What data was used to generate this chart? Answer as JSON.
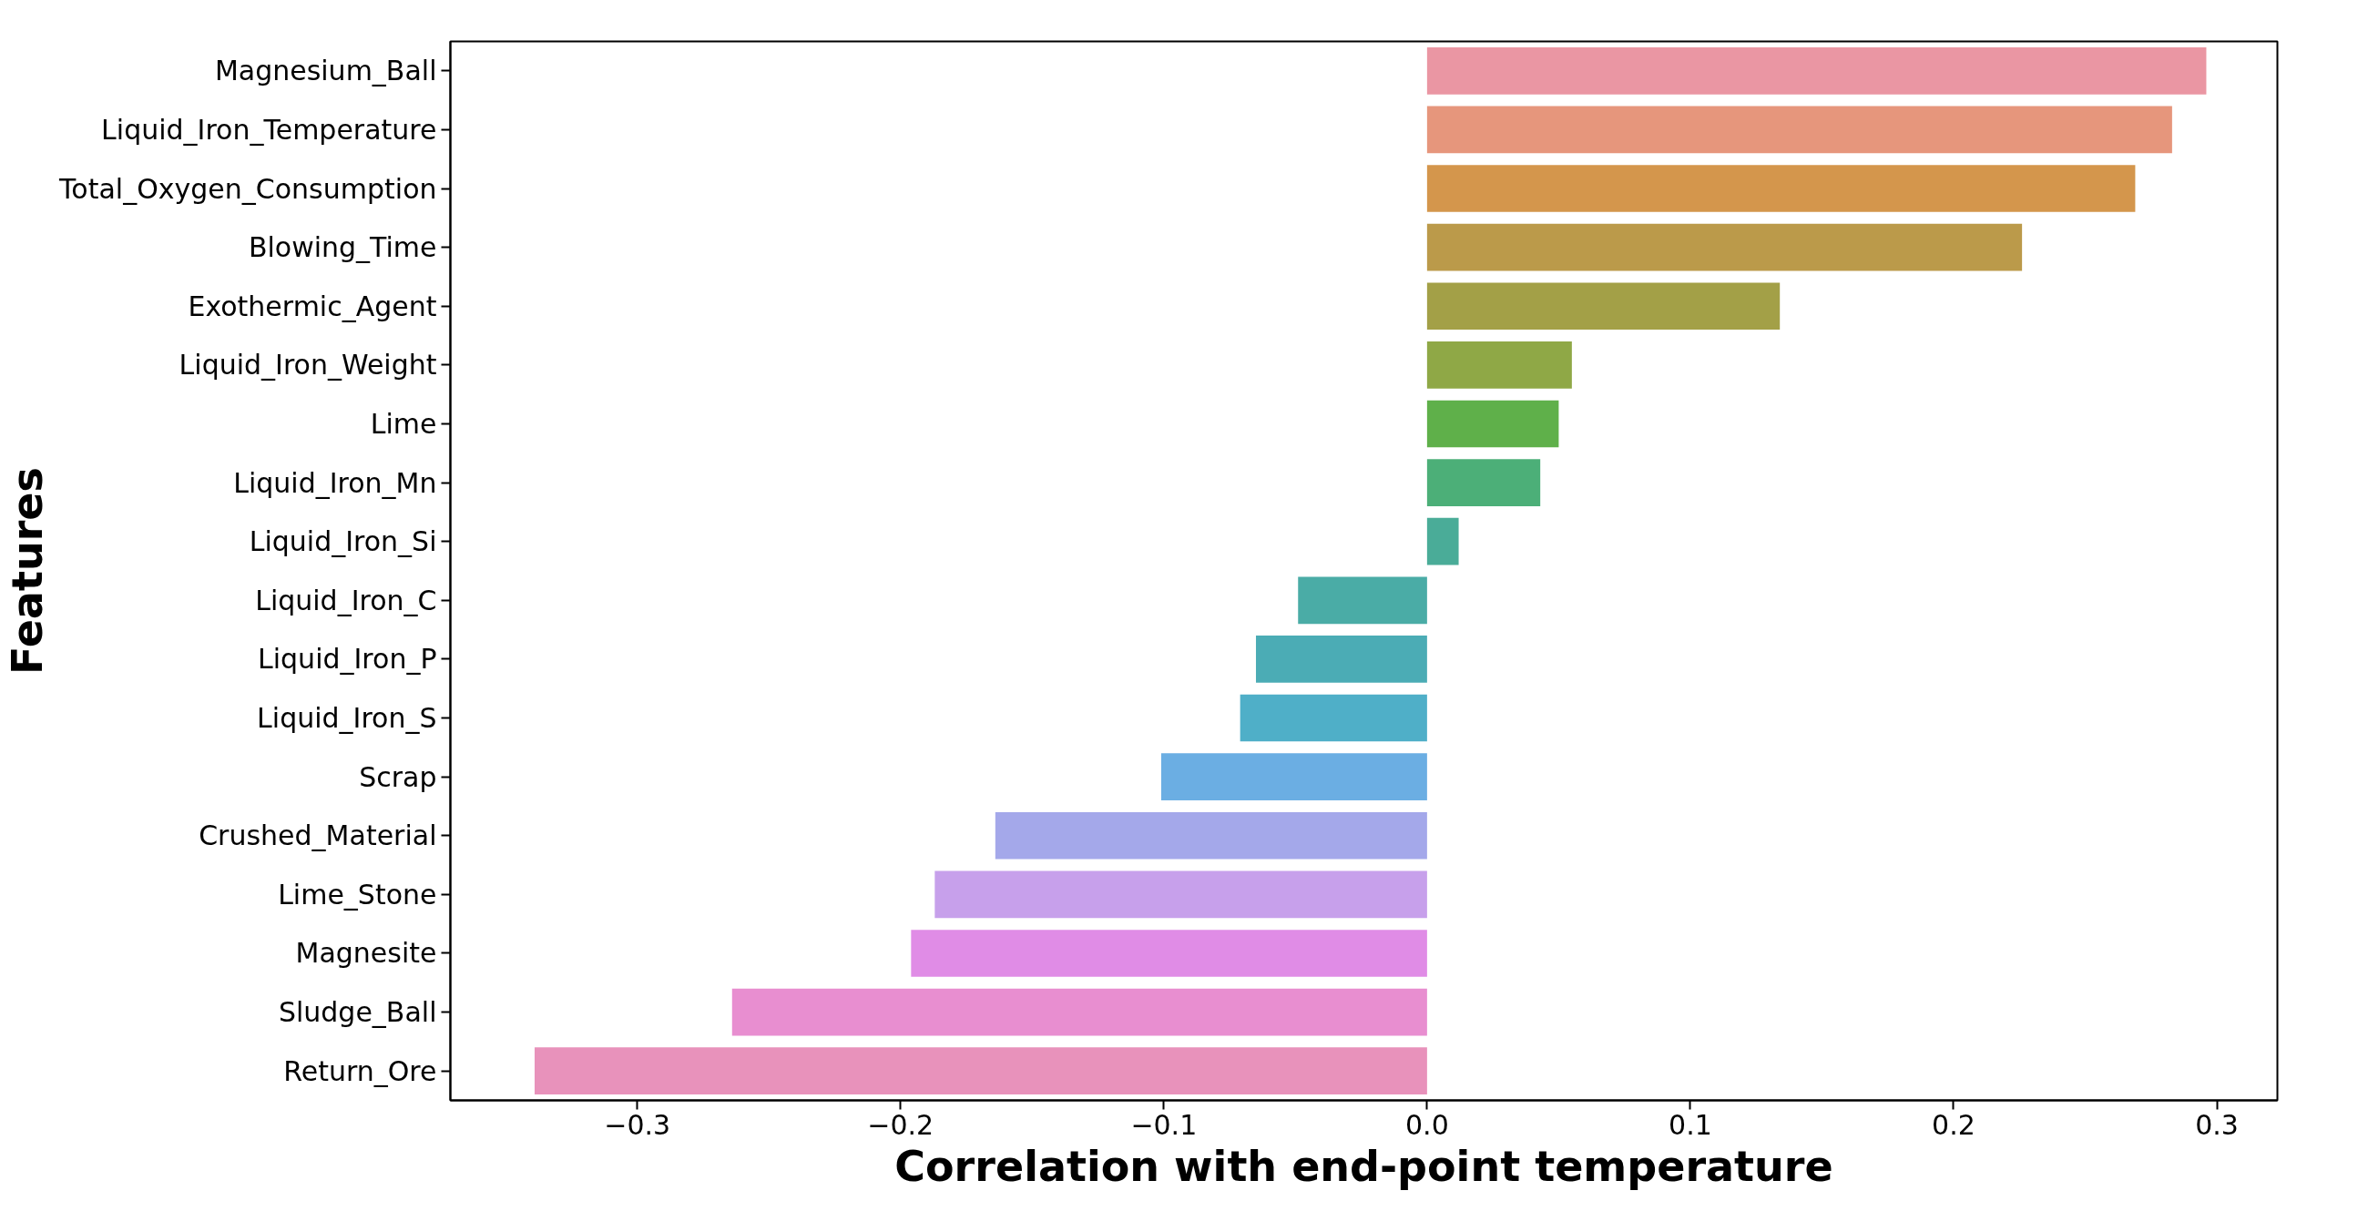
{
  "chart_data": {
    "type": "bar",
    "orientation": "horizontal",
    "xlabel": "Correlation with end-point temperature",
    "ylabel": "Features",
    "categories": [
      "Magnesium_Ball",
      "Liquid_Iron_Temperature",
      "Total_Oxygen_Consumption",
      "Blowing_Time",
      "Exothermic_Agent",
      "Liquid_Iron_Weight",
      "Lime",
      "Liquid_Iron_Mn",
      "Liquid_Iron_Si",
      "Liquid_Iron_C",
      "Liquid_Iron_P",
      "Liquid_Iron_S",
      "Scrap",
      "Crushed_Material",
      "Lime_Stone",
      "Magnesite",
      "Sludge_Ball",
      "Return_Ore"
    ],
    "values": [
      0.296,
      0.283,
      0.269,
      0.226,
      0.134,
      0.055,
      0.05,
      0.043,
      0.012,
      -0.049,
      -0.065,
      -0.071,
      -0.101,
      -0.164,
      -0.187,
      -0.196,
      -0.264,
      -0.339
    ],
    "colors": [
      "#ea96a3",
      "#e6967c",
      "#d4964c",
      "#bb9a4a",
      "#a3a047",
      "#8fa846",
      "#5fb04a",
      "#4caf78",
      "#4aac98",
      "#4aaca6",
      "#4bacb5",
      "#4fafc8",
      "#6baee3",
      "#a4a8ea",
      "#c7a0eb",
      "#e08ce6",
      "#e88ed0",
      "#e892bb"
    ],
    "xlim": [
      -0.371,
      0.323
    ],
    "xticks": [
      {
        "value": -0.3,
        "label": "−0.3"
      },
      {
        "value": -0.2,
        "label": "−0.2"
      },
      {
        "value": -0.1,
        "label": "−0.1"
      },
      {
        "value": 0.0,
        "label": "0.0"
      },
      {
        "value": 0.1,
        "label": "0.1"
      },
      {
        "value": 0.2,
        "label": "0.2"
      },
      {
        "value": 0.3,
        "label": "0.3"
      }
    ],
    "grid": false
  }
}
